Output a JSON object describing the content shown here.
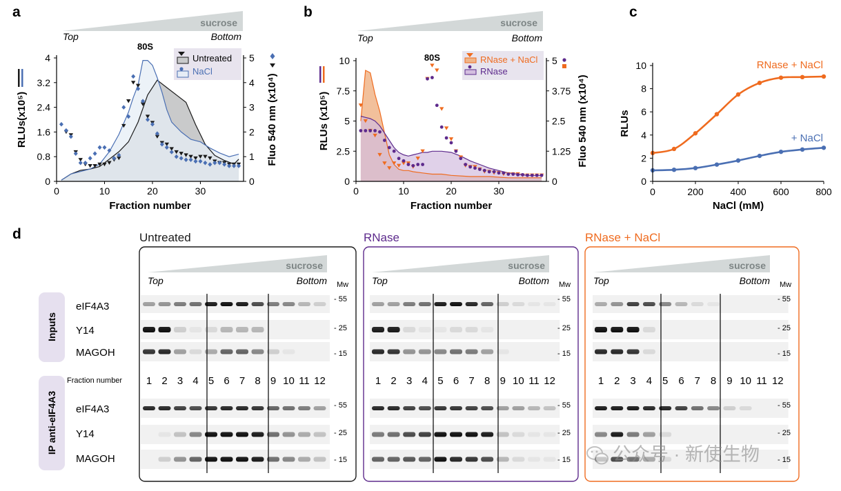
{
  "colors": {
    "black": "#1a1a1a",
    "blue": "#4a6fb3",
    "blue_fill": "#e6edf6",
    "gray_fill": "#c9cacb",
    "orange": "#ef6b1f",
    "orange_fill": "#f0b58a",
    "purple": "#5d2a8c",
    "purple_fill": "#d3bedf",
    "tag_bg": "#e6e0ef",
    "legend_bg": "#e8e4ee",
    "wedge": "#d3d8d8"
  },
  "gradient": {
    "sucrose": "sucrose",
    "top": "Top",
    "bottom": "Bottom"
  },
  "watermark": "公众号 · 新使生物",
  "chart_data": [
    {
      "panel": "a",
      "type": "line",
      "xlabel": "Fraction number",
      "ylabel": "RLUs(x10⁵)",
      "y2label": "Fluo 540 nm (x10⁴)",
      "xlim": [
        0,
        39
      ],
      "ylim": [
        0,
        4
      ],
      "y2lim": [
        0,
        5
      ],
      "xticks": [
        "0",
        "10",
        "20",
        "30"
      ],
      "yticks": [
        "0",
        "0.8",
        "1.6",
        "2.4",
        "3.2",
        "4"
      ],
      "y2ticks": [
        "0",
        "1",
        "2",
        "3",
        "4",
        "5"
      ],
      "peak_label": "80S",
      "peak_x": 18.5,
      "legend_position": "top-right",
      "series": [
        {
          "name": "Untreated",
          "kind": "fluo-area",
          "x": [
            1,
            3,
            5,
            7,
            9,
            11,
            13,
            15,
            17,
            19,
            21,
            23,
            25,
            27,
            29,
            31,
            33,
            35,
            37,
            38
          ],
          "y": [
            0.05,
            0.3,
            0.45,
            0.5,
            0.6,
            0.9,
            1.2,
            1.6,
            2.4,
            3.5,
            4.1,
            3.8,
            3.5,
            3.2,
            2.3,
            1.5,
            1.05,
            0.85,
            0.7,
            0.9
          ]
        },
        {
          "name": "NaCl",
          "kind": "fluo-area",
          "x": [
            1,
            3,
            5,
            7,
            9,
            11,
            13,
            15,
            16,
            17,
            18,
            19,
            20,
            21,
            22,
            23,
            24,
            26,
            28,
            30,
            32,
            34,
            36,
            38
          ],
          "y": [
            0.05,
            0.3,
            0.4,
            0.5,
            0.7,
            1.2,
            1.9,
            2.8,
            3.4,
            3.9,
            4.9,
            4.9,
            4.7,
            4.2,
            3.6,
            2.9,
            2.4,
            2.0,
            1.7,
            1.6,
            1.35,
            1.15,
            1.0,
            1.1
          ]
        },
        {
          "name": "Untreated",
          "kind": "rlu-markers",
          "x": [
            2,
            3,
            4,
            5,
            6,
            7,
            8,
            9,
            10,
            11,
            12,
            13,
            14,
            15,
            16,
            17,
            18,
            19,
            20,
            21,
            22,
            23,
            24,
            25,
            26,
            27,
            28,
            29,
            30,
            31,
            32,
            33,
            34,
            35,
            36,
            37,
            38
          ],
          "y": [
            1.6,
            1.5,
            0.95,
            0.7,
            0.55,
            0.5,
            0.5,
            0.55,
            0.55,
            0.6,
            0.7,
            0.75,
            1.8,
            2.6,
            3.2,
            3.1,
            2.5,
            2.1,
            1.9,
            1.45,
            1.25,
            1.2,
            1.05,
            0.95,
            0.9,
            0.85,
            0.8,
            0.75,
            0.8,
            0.8,
            0.75,
            0.65,
            0.6,
            0.6,
            0.55,
            0.55,
            0.55
          ]
        },
        {
          "name": "NaCl",
          "kind": "rlu-markers",
          "x": [
            1,
            2,
            3,
            4,
            5,
            6,
            7,
            8,
            9,
            10,
            11,
            12,
            13,
            14,
            15,
            16,
            17,
            18,
            19,
            20,
            21,
            22,
            23,
            24,
            25,
            26,
            27,
            28,
            29,
            30,
            31,
            32,
            33,
            34,
            35,
            36,
            37,
            38
          ],
          "y": [
            1.85,
            1.65,
            1.45,
            0.9,
            0.6,
            0.6,
            0.75,
            0.9,
            1.1,
            1.1,
            1.0,
            0.75,
            0.85,
            2.4,
            2.1,
            3.4,
            3.0,
            2.6,
            2.0,
            1.85,
            1.55,
            1.2,
            1.1,
            0.95,
            0.8,
            0.75,
            0.7,
            0.7,
            0.65,
            0.65,
            0.6,
            0.55,
            0.6,
            0.6,
            0.55,
            0.5,
            0.5,
            0.5
          ]
        }
      ]
    },
    {
      "panel": "b",
      "type": "line",
      "xlabel": "Fraction number",
      "ylabel": "RLUs (x10⁵)",
      "y2label": "Fluo 540 nm (x10⁴)",
      "xlim": [
        0,
        40
      ],
      "ylim": [
        0,
        10
      ],
      "y2lim": [
        0,
        5
      ],
      "xticks": [
        "0",
        "10",
        "20",
        "30"
      ],
      "yticks": [
        "0",
        "2.5",
        "5",
        "7.5",
        "10"
      ],
      "y2ticks": [
        "0",
        "1.25",
        "2.5",
        "3.75",
        "5"
      ],
      "peak_label": "80S",
      "peak_x": 16,
      "legend_position": "top-right",
      "series": [
        {
          "name": "RNase + NaCl",
          "kind": "fluo-area",
          "x": [
            1,
            2,
            3,
            4,
            5,
            6,
            7,
            8,
            9,
            10,
            11,
            12,
            14,
            16,
            18,
            20,
            24,
            28,
            32,
            36,
            39
          ],
          "y": [
            2.5,
            4.6,
            4.5,
            3.6,
            2.9,
            2.0,
            1.1,
            0.7,
            0.5,
            0.45,
            0.45,
            0.4,
            0.35,
            0.3,
            0.3,
            0.25,
            0.2,
            0.2,
            0.15,
            0.15,
            0.15
          ]
        },
        {
          "name": "RNase",
          "kind": "fluo-area",
          "x": [
            1,
            2,
            3,
            4,
            5,
            6,
            7,
            8,
            9,
            10,
            11,
            12,
            13,
            14,
            15,
            16,
            18,
            20,
            22,
            24,
            26,
            28,
            30,
            32,
            34,
            36,
            39
          ],
          "y": [
            2.7,
            2.65,
            2.6,
            2.5,
            2.3,
            2.0,
            1.7,
            1.4,
            1.2,
            1.1,
            1.05,
            1.1,
            1.15,
            1.2,
            1.2,
            1.25,
            1.25,
            1.2,
            1.05,
            0.85,
            0.7,
            0.55,
            0.45,
            0.35,
            0.3,
            0.25,
            0.25
          ]
        },
        {
          "name": "RNase + NaCl",
          "kind": "rlu-markers",
          "x": [
            1,
            2,
            3,
            4,
            5,
            6,
            7,
            8,
            9,
            10,
            11,
            12,
            13,
            14,
            15,
            16,
            17,
            18,
            19,
            20,
            21,
            22,
            23,
            24,
            25,
            26,
            27,
            28,
            29,
            30,
            31,
            32,
            33,
            34,
            35,
            36,
            37,
            38,
            39
          ],
          "y": [
            6.3,
            5.0,
            4.2,
            3.8,
            2.2,
            1.5,
            1.1,
            1.5,
            1.3,
            1.5,
            1.5,
            1.2,
            1.9,
            2.5,
            8.5,
            9.6,
            9.2,
            6.0,
            4.4,
            3.5,
            2.5,
            2.0,
            1.3,
            1.2,
            1.2,
            1.0,
            0.8,
            0.8,
            0.7,
            0.7,
            0.6,
            0.6,
            0.6,
            0.6,
            0.5,
            0.5,
            0.5,
            0.5,
            0.5
          ]
        },
        {
          "name": "RNase",
          "kind": "rlu-markers",
          "x": [
            1,
            2,
            3,
            4,
            5,
            6,
            7,
            8,
            9,
            10,
            11,
            12,
            13,
            14,
            15,
            16,
            17,
            18,
            19,
            20,
            21,
            22,
            23,
            24,
            25,
            26,
            27,
            28,
            29,
            30,
            31,
            32,
            33,
            34,
            35,
            36,
            37,
            38,
            39
          ],
          "y": [
            4.2,
            4.2,
            4.2,
            4.2,
            4.1,
            3.4,
            2.8,
            2.5,
            1.9,
            1.7,
            1.4,
            1.3,
            1.4,
            1.4,
            8.5,
            8.6,
            6.3,
            4.5,
            3.6,
            3.2,
            2.5,
            1.9,
            1.4,
            1.2,
            1.1,
            1.0,
            0.9,
            0.8,
            0.8,
            0.7,
            0.7,
            0.6,
            0.6,
            0.55,
            0.55,
            0.5,
            0.5,
            0.5,
            0.5
          ]
        }
      ]
    },
    {
      "panel": "c",
      "type": "line",
      "xlabel": "NaCl (mM)",
      "ylabel": "RLUs",
      "xlim": [
        0,
        800
      ],
      "ylim": [
        0,
        10
      ],
      "xticks": [
        "0",
        "200",
        "400",
        "600",
        "800"
      ],
      "yticks": [
        "0",
        "2",
        "4",
        "6",
        "8",
        "10"
      ],
      "series": [
        {
          "name": "RNase + NaCl",
          "x": [
            0,
            100,
            200,
            300,
            400,
            500,
            600,
            700,
            800
          ],
          "y": [
            2.45,
            2.8,
            4.15,
            5.8,
            7.5,
            8.5,
            8.95,
            9.0,
            9.05
          ]
        },
        {
          "name": "+ NaCl",
          "x": [
            0,
            100,
            200,
            300,
            400,
            500,
            600,
            700,
            800
          ],
          "y": [
            0.95,
            1.0,
            1.15,
            1.45,
            1.8,
            2.2,
            2.55,
            2.75,
            2.9
          ]
        }
      ]
    }
  ],
  "panels": {
    "a": {
      "letter": "a"
    },
    "b": {
      "letter": "b"
    },
    "c": {
      "letter": "c"
    },
    "d": {
      "letter": "d",
      "groups": [
        "Untreated",
        "RNase",
        "RNase + NaCl"
      ],
      "section_tags": [
        "Inputs",
        "IP anti-eIF4A3"
      ],
      "fraction_label": "Fraction number",
      "fractions": [
        "1",
        "2",
        "3",
        "4",
        "5",
        "6",
        "7",
        "8",
        "9",
        "10",
        "11",
        "12"
      ],
      "proteins": [
        "eIF4A3",
        "Y14",
        "MAGOH"
      ],
      "mw_header": "Mw",
      "mw_inputs": [
        "55",
        "25",
        "15"
      ],
      "mw_ip": [
        "55",
        "25",
        "15"
      ],
      "bands": {
        "untreated": {
          "in_eif4a3": [
            0.35,
            0.4,
            0.5,
            0.55,
            0.9,
            0.95,
            0.9,
            0.7,
            0.5,
            0.45,
            0.25,
            0.15
          ],
          "in_y14": [
            0.95,
            0.95,
            0.15,
            0.05,
            0.1,
            0.25,
            0.25,
            0.25,
            0,
            0,
            0,
            0
          ],
          "in_magoh": [
            0.8,
            0.85,
            0.35,
            0.1,
            0.3,
            0.6,
            0.6,
            0.45,
            0.15,
            0.05,
            0,
            0
          ],
          "ip_eif4a3": [
            0.85,
            0.85,
            0.75,
            0.7,
            0.8,
            0.85,
            0.85,
            0.8,
            0.6,
            0.55,
            0.5,
            0.35
          ],
          "ip_y14": [
            0,
            0.05,
            0.2,
            0.45,
            0.95,
            0.95,
            0.95,
            0.9,
            0.55,
            0.4,
            0.3,
            0.2
          ],
          "ip_magoh": [
            0,
            0.15,
            0.4,
            0.6,
            0.95,
            0.95,
            0.95,
            0.9,
            0.55,
            0.45,
            0.3,
            0.2
          ]
        },
        "rnase": {
          "in_eif4a3": [
            0.35,
            0.35,
            0.5,
            0.55,
            0.9,
            0.95,
            0.85,
            0.6,
            0.15,
            0.1,
            0.05,
            0.05
          ],
          "in_y14": [
            0.9,
            0.9,
            0.1,
            0.05,
            0.05,
            0.1,
            0.1,
            0.05,
            0,
            0,
            0,
            0
          ],
          "in_magoh": [
            0.85,
            0.8,
            0.4,
            0.4,
            0.45,
            0.55,
            0.5,
            0.35,
            0.05,
            0,
            0,
            0
          ],
          "ip_eif4a3": [
            0.85,
            0.85,
            0.75,
            0.7,
            0.8,
            0.8,
            0.75,
            0.7,
            0.35,
            0.35,
            0.25,
            0.2
          ],
          "ip_y14": [
            0.5,
            0.55,
            0.7,
            0.75,
            0.95,
            0.95,
            0.95,
            0.9,
            0.2,
            0.1,
            0.05,
            0.05
          ],
          "ip_magoh": [
            0.6,
            0.6,
            0.65,
            0.6,
            0.95,
            0.85,
            0.8,
            0.7,
            0.25,
            0.1,
            0.05,
            0.05
          ]
        },
        "rnase_nacl": {
          "in_eif4a3": [
            0.3,
            0.4,
            0.75,
            0.7,
            0.45,
            0.25,
            0.1,
            0.05,
            0,
            0,
            0,
            0
          ],
          "in_y14": [
            0.95,
            0.95,
            0.95,
            0.1,
            0,
            0,
            0,
            0,
            0,
            0,
            0,
            0
          ],
          "in_magoh": [
            0.85,
            0.85,
            0.8,
            0.1,
            0,
            0,
            0,
            0,
            0,
            0,
            0,
            0
          ],
          "ip_eif4a3": [
            0.9,
            0.9,
            0.9,
            0.85,
            0.85,
            0.75,
            0.55,
            0.45,
            0.15,
            0.1,
            0,
            0
          ],
          "ip_y14": [
            0.45,
            0.9,
            0.5,
            0.35,
            0.1,
            0,
            0,
            0,
            0,
            0,
            0,
            0
          ],
          "ip_magoh": [
            0.55,
            0.7,
            0.55,
            0.3,
            0.1,
            0,
            0,
            0,
            0,
            0,
            0,
            0
          ]
        }
      }
    }
  }
}
